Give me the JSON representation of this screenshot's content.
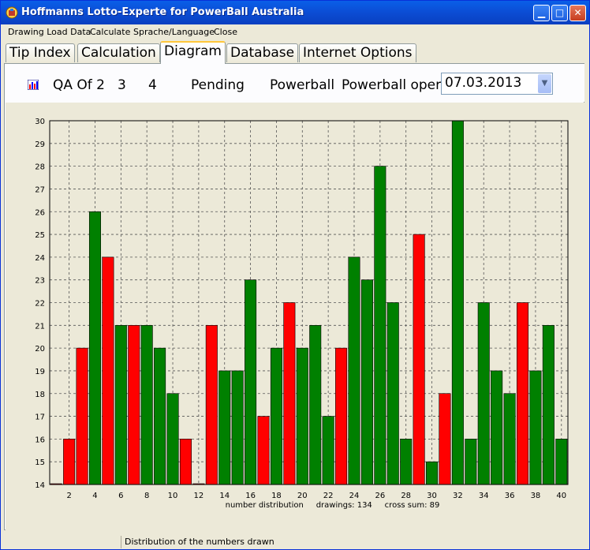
{
  "window": {
    "title": "Hoffmanns Lotto-Experte for PowerBall Australia"
  },
  "menu": [
    {
      "label": "Drawing Load Data"
    },
    {
      "label": "Calculate"
    },
    {
      "label": "Sprache/Language"
    },
    {
      "label": "Close"
    }
  ],
  "tabs": [
    {
      "label": "Tip Index"
    },
    {
      "label": "Calculation"
    },
    {
      "label": "Diagram",
      "active": true
    },
    {
      "label": "Database"
    },
    {
      "label": "Internet Options"
    }
  ],
  "toolbar": {
    "qa_label": "QA Of 2",
    "value_a": "3",
    "value_b": "4",
    "status": "Pending",
    "game_label": "Powerball",
    "mode_label": "Powerball oper",
    "date_value": "07.03.2013"
  },
  "chart_data": {
    "type": "bar",
    "title": "",
    "xlabel": "number distribution     drawings: 134     cross sum: 89",
    "ylabel": "",
    "ylim": [
      14,
      30
    ],
    "y_ticks": [
      14,
      15,
      16,
      17,
      18,
      19,
      20,
      21,
      22,
      23,
      24,
      25,
      26,
      27,
      28,
      29,
      30
    ],
    "x_tick_labels": [
      "2",
      "4",
      "6",
      "8",
      "10",
      "12",
      "14",
      "16",
      "18",
      "20",
      "22",
      "24",
      "26",
      "28",
      "30",
      "32",
      "34",
      "36",
      "38",
      "40"
    ],
    "grid": true,
    "categories": [
      1,
      2,
      3,
      4,
      5,
      6,
      7,
      8,
      9,
      10,
      11,
      12,
      13,
      14,
      15,
      16,
      17,
      18,
      19,
      20,
      21,
      22,
      23,
      24,
      25,
      26,
      27,
      28,
      29,
      30,
      31,
      32,
      33,
      34,
      35,
      36,
      37,
      38,
      39,
      40
    ],
    "values": [
      14,
      16,
      20,
      26,
      24,
      21,
      21,
      21,
      20,
      18,
      16,
      14,
      21,
      19,
      19,
      23,
      17,
      20,
      22,
      20,
      21,
      17,
      20,
      24,
      23,
      28,
      22,
      16,
      25,
      15,
      18,
      30,
      16,
      22,
      19,
      18,
      22,
      19,
      21,
      16
    ],
    "colors": [
      "red",
      "red",
      "red",
      "green",
      "red",
      "green",
      "red",
      "green",
      "green",
      "green",
      "red",
      "red",
      "red",
      "green",
      "green",
      "green",
      "red",
      "green",
      "red",
      "green",
      "green",
      "green",
      "red",
      "green",
      "green",
      "green",
      "green",
      "green",
      "red",
      "green",
      "red",
      "green",
      "green",
      "green",
      "green",
      "green",
      "red",
      "green",
      "green",
      "green"
    ],
    "palette": {
      "red": "#ff0000",
      "green": "#008000"
    }
  },
  "status": {
    "text": "Distribution of the numbers drawn"
  }
}
